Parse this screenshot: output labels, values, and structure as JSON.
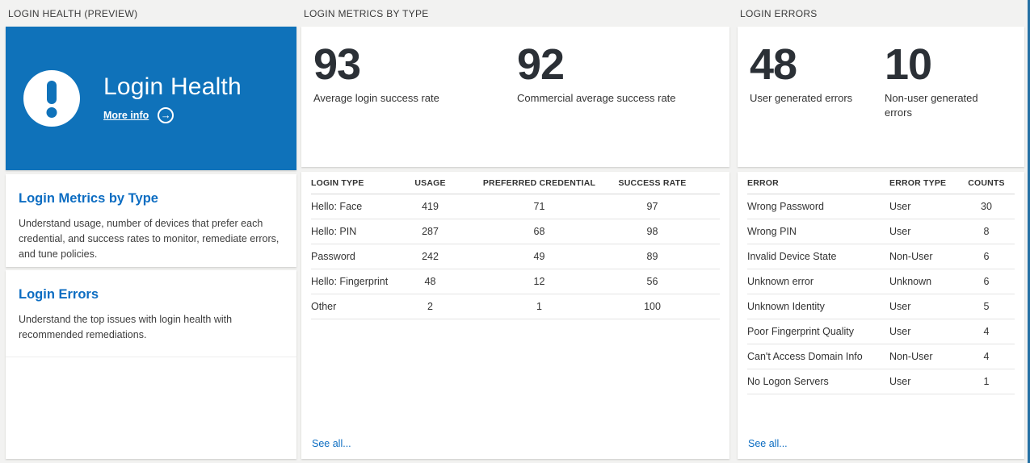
{
  "colors": {
    "hero_blue": "#0f72ba",
    "accent_blue": "#0d6dc2",
    "edge_bar_blue": "#2470a4",
    "stat_text": "#2b3036"
  },
  "health": {
    "header": "LOGIN HEALTH (PREVIEW)",
    "hero": {
      "title": "Login Health",
      "more_info": "More info",
      "arrow_glyph": "→"
    },
    "sections": [
      {
        "title": "Login Metrics by Type",
        "description": "Understand usage, number of devices that prefer each credential, and success rates to monitor, remediate errors, and tune policies."
      },
      {
        "title": "Login Errors",
        "description": "Understand the top issues with login health with recommended remediations."
      }
    ]
  },
  "metrics": {
    "header": "LOGIN METRICS BY TYPE",
    "stats": [
      {
        "value": "93",
        "label": "Average login success rate"
      },
      {
        "value": "92",
        "label": "Commercial average success rate"
      }
    ],
    "table": {
      "columns": [
        "LOGIN TYPE",
        "USAGE",
        "PREFERRED CREDENTIAL",
        "SUCCESS RATE"
      ],
      "rows": [
        [
          "Hello: Face",
          "419",
          "71",
          "97"
        ],
        [
          "Hello: PIN",
          "287",
          "68",
          "98"
        ],
        [
          "Password",
          "242",
          "49",
          "89"
        ],
        [
          "Hello: Fingerprint",
          "48",
          "12",
          "56"
        ],
        [
          "Other",
          "2",
          "1",
          "100"
        ]
      ]
    },
    "see_all": "See all..."
  },
  "errors": {
    "header": "LOGIN ERRORS",
    "stats": [
      {
        "value": "48",
        "label": "User generated errors"
      },
      {
        "value": "10",
        "label": "Non-user generated errors"
      }
    ],
    "table": {
      "columns": [
        "ERROR",
        "ERROR TYPE",
        "COUNTS"
      ],
      "rows": [
        [
          "Wrong Password",
          "User",
          "30"
        ],
        [
          "Wrong PIN",
          "User",
          "8"
        ],
        [
          "Invalid Device State",
          "Non-User",
          "6"
        ],
        [
          "Unknown error",
          "Unknown",
          "6"
        ],
        [
          "Unknown Identity",
          "User",
          "5"
        ],
        [
          "Poor Fingerprint Quality",
          "User",
          "4"
        ],
        [
          "Can't Access Domain Info",
          "Non-User",
          "4"
        ],
        [
          "No Logon Servers",
          "User",
          "1"
        ]
      ]
    },
    "see_all": "See all..."
  }
}
